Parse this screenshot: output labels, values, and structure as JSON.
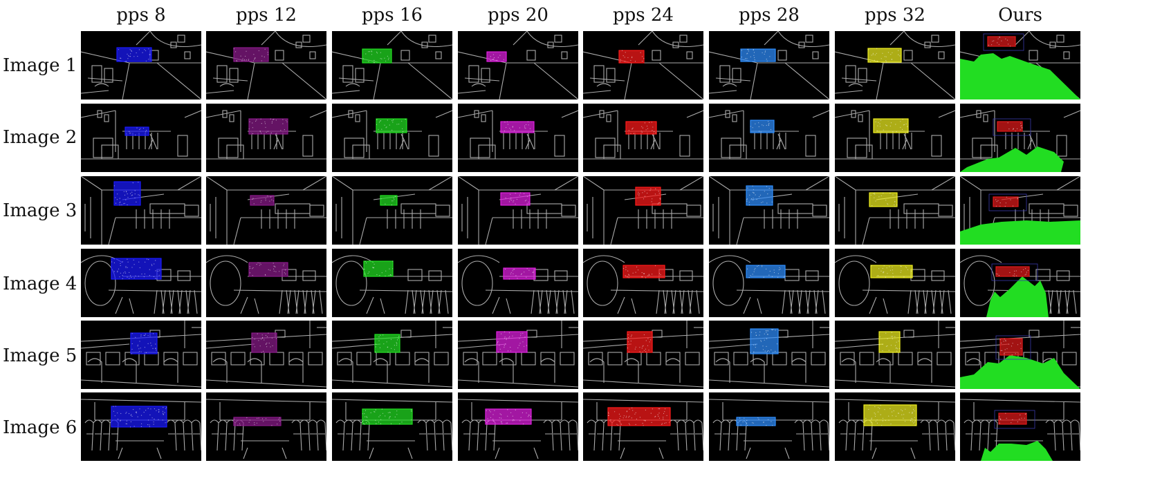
{
  "columns": [
    "pps 8",
    "pps 12",
    "pps 16",
    "pps 20",
    "pps 24",
    "pps 28",
    "pps 32",
    "Ours"
  ],
  "rows": [
    "Image 1",
    "Image 2",
    "Image 3",
    "Image 4",
    "Image 5",
    "Image 6"
  ],
  "colors": {
    "pps 8": "#1a1aff",
    "pps 12": "#8a1a8a",
    "pps 16": "#22e022",
    "pps 20": "#e020e0",
    "pps 24": "#ff1a1a",
    "pps 28": "#2f8fff",
    "pps 32": "#f0f020",
    "Ours": "#e01a1a",
    "ours_floor": "#22dd22",
    "edges": "#bfbfbf",
    "background": "#000000"
  }
}
